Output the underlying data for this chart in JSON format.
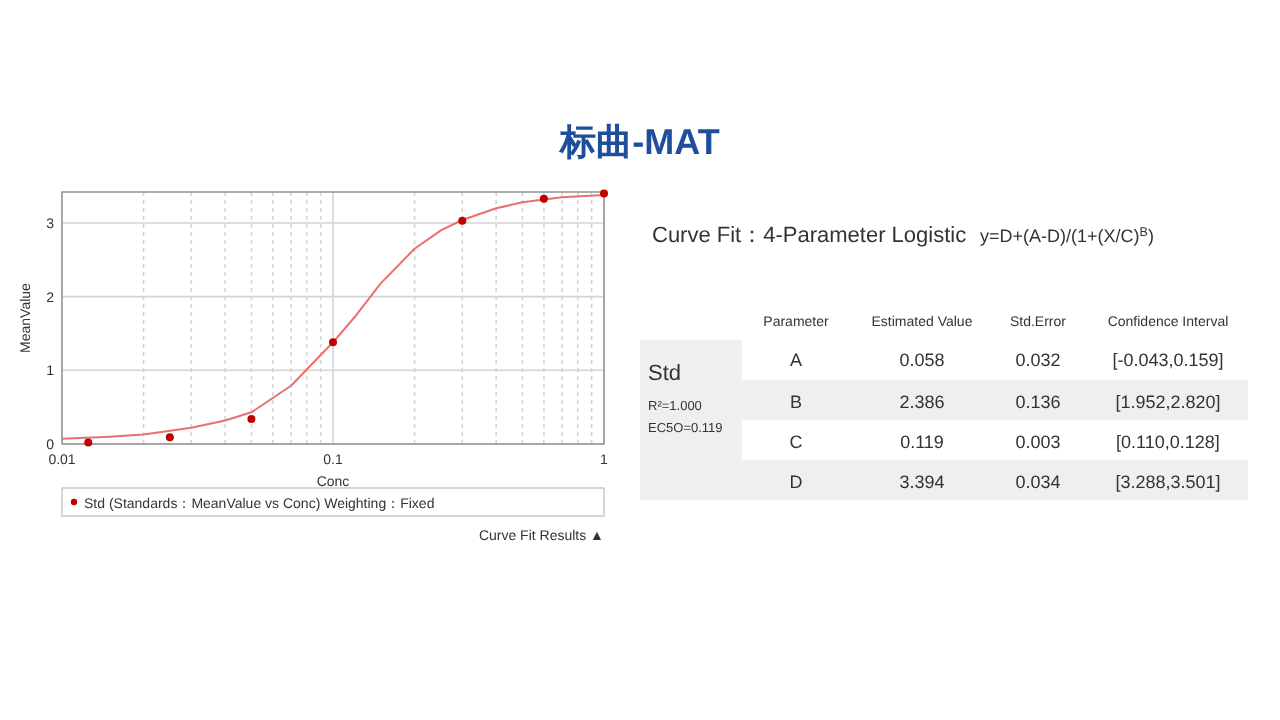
{
  "chart_data": {
    "type": "scatter",
    "title": "标曲-MAT",
    "xlabel": "Conc",
    "ylabel": "MeanValue",
    "log": "x",
    "xlim": [
      0.01,
      1
    ],
    "xticks": [
      0.01,
      {
        "value": 0.02,
        "label": null
      },
      {
        "value": 0.03,
        "label": null
      },
      {
        "value": 0.04,
        "label": null
      },
      {
        "value": 0.05,
        "label": null
      },
      {
        "value": 0.06,
        "label": null
      },
      {
        "value": 0.07,
        "label": null
      },
      {
        "value": 0.08,
        "label": null
      },
      {
        "value": 0.09,
        "label": null
      },
      0.1,
      {
        "value": 0.2,
        "label": null
      },
      {
        "value": 0.3,
        "label": null
      },
      {
        "value": 0.4,
        "label": null
      },
      {
        "value": 0.5,
        "label": null
      },
      {
        "value": 0.6,
        "label": null
      },
      {
        "value": 0.7,
        "label": null
      },
      {
        "value": 0.8,
        "label": null
      },
      {
        "value": 0.9,
        "label": null
      },
      1
    ],
    "ylim": [
      0,
      3.42
    ],
    "yticks": [
      0,
      1,
      2,
      3
    ],
    "grid": true,
    "legend": "bottom",
    "series": [
      {
        "name": "Std (Standards：MeanValue vs Conc) Weighting：Fixed",
        "type": "scatter",
        "marker": "circle",
        "color": "#c00000",
        "x": [
          0.0125,
          0.025,
          0.05,
          0.1,
          0.3,
          0.6,
          1
        ],
        "values": [
          0.02,
          0.09,
          0.34,
          1.38,
          3.03,
          3.33,
          3.4
        ]
      },
      {
        "type": "line",
        "marker": "none",
        "line_style": "solid",
        "color": "#e87070",
        "x": [
          0.01,
          0.015,
          0.02,
          0.03,
          0.04,
          0.05,
          0.07,
          0.1,
          0.12,
          0.15,
          0.2,
          0.25,
          0.3,
          0.4,
          0.5,
          0.7,
          1
        ],
        "values": [
          0.07,
          0.1,
          0.13,
          0.22,
          0.32,
          0.43,
          0.79,
          1.38,
          1.72,
          2.18,
          2.65,
          2.9,
          3.04,
          3.2,
          3.28,
          3.35,
          3.38
        ]
      }
    ],
    "annotations": [
      "Curve Fit Results ▲",
      "Curve Fit：4-Parameter Logistic",
      "y=D+(A-D)/(1+(X/C)$^{B}$)",
      "Parameter",
      "Estimated Value",
      "Std.Error",
      "Confidence Interval",
      "Std",
      "R²=1.000",
      "EC5O=0.119",
      "A",
      "0.058",
      "0.032",
      "[-0.043,0.159]",
      "B",
      "2.386",
      "0.136",
      "[1.952,2.820]",
      "C",
      "0.119",
      "0.003",
      "[0.110,0.128]",
      "D",
      "3.394",
      "0.034",
      "[3.288,3.501]"
    ]
  }
}
